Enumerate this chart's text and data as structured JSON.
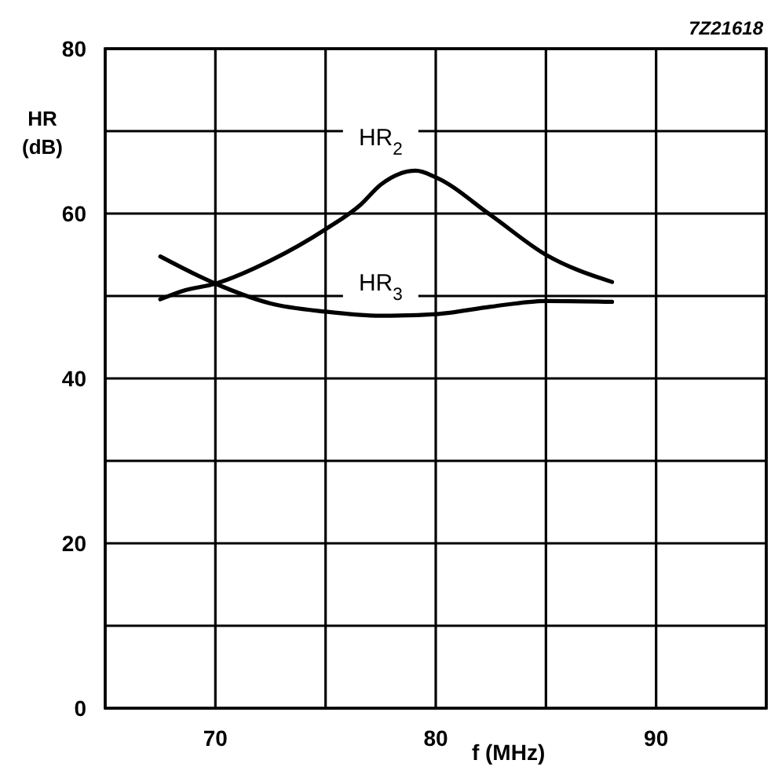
{
  "chart_data": {
    "type": "line",
    "xlabel": "f (MHz)",
    "ylabel": "HR (dB)",
    "annotations": [
      "7Z21618"
    ],
    "xlim": [
      65,
      95
    ],
    "xticks": [
      {
        "value": 65,
        "label": null
      },
      70,
      {
        "value": 75,
        "label": null
      },
      80,
      {
        "value": 85,
        "label": null
      },
      90,
      {
        "value": 95,
        "label": null
      }
    ],
    "ylim": [
      0,
      80
    ],
    "yticks": [
      0,
      {
        "value": 10,
        "label": null
      },
      20,
      {
        "value": 30,
        "label": null
      },
      40,
      {
        "value": 50,
        "label": null
      },
      60,
      {
        "value": 70,
        "label": null
      },
      80
    ],
    "grid": true,
    "marker": "none",
    "line_style": "solid",
    "series": [
      {
        "name": "HR$_{2}$",
        "color": "#000000",
        "x": [
          67.5,
          68.5,
          70,
          72.5,
          75,
          76.6,
          77.5,
          79.1,
          80,
          82.5,
          85,
          88
        ],
        "values": [
          49.6,
          50.6,
          51.5,
          54.3,
          58.1,
          61.1,
          63.5,
          65.2,
          64.4,
          59.8,
          55,
          51.7
        ]
      },
      {
        "name": "HR$_{3}$",
        "color": "#000000",
        "x": [
          67.5,
          70,
          72.5,
          75,
          77.5,
          80,
          82.5,
          85,
          88
        ],
        "values": [
          54.8,
          51.5,
          49.1,
          48.1,
          47.6,
          47.8,
          48.7,
          49.4,
          49.3
        ]
      }
    ]
  }
}
